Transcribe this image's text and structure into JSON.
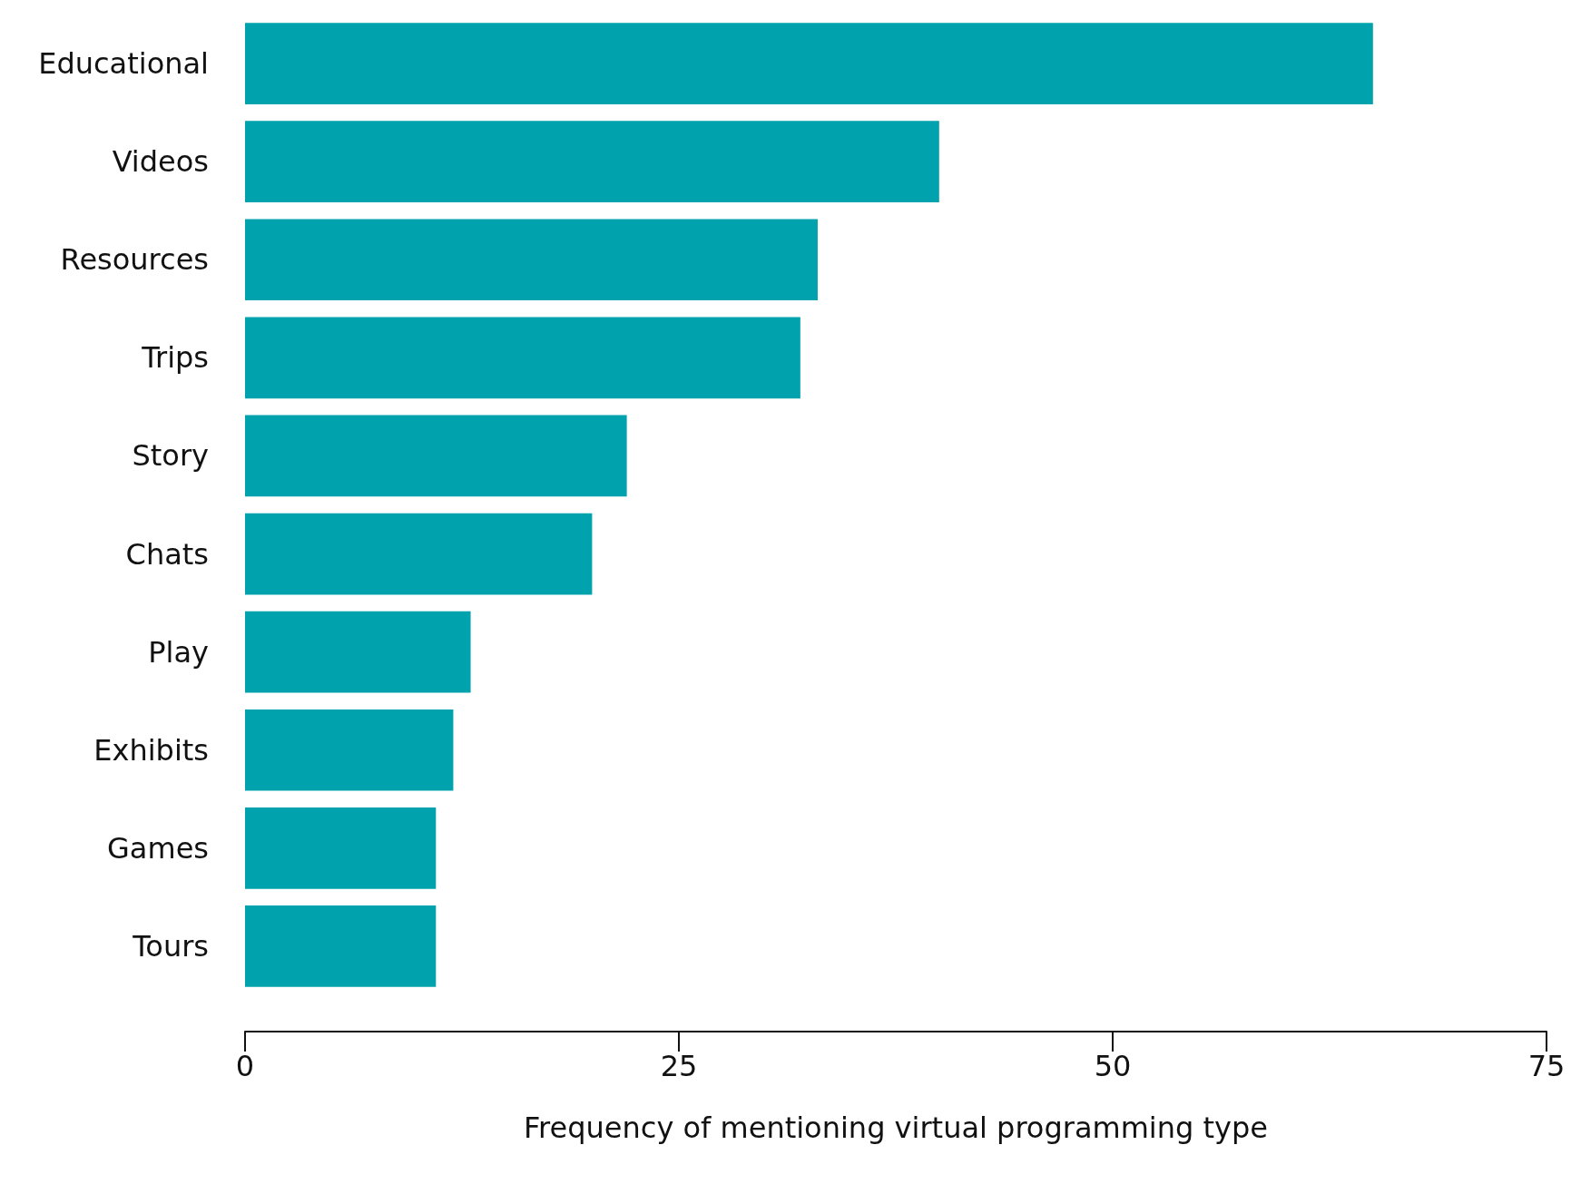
{
  "chart_data": {
    "type": "bar",
    "orientation": "horizontal",
    "xlabel": "Frequency of mentioning virtual programming type",
    "categories": [
      "Educational",
      "Videos",
      "Resources",
      "Trips",
      "Story",
      "Chats",
      "Play",
      "Exhibits",
      "Games",
      "Tours"
    ],
    "values": [
      65,
      40,
      33,
      32,
      22,
      20,
      13,
      12,
      11,
      11
    ],
    "color": "#00a3ad",
    "xlim": [
      0,
      75
    ],
    "xticks": [
      0,
      25,
      50,
      75
    ],
    "grid": false
  }
}
